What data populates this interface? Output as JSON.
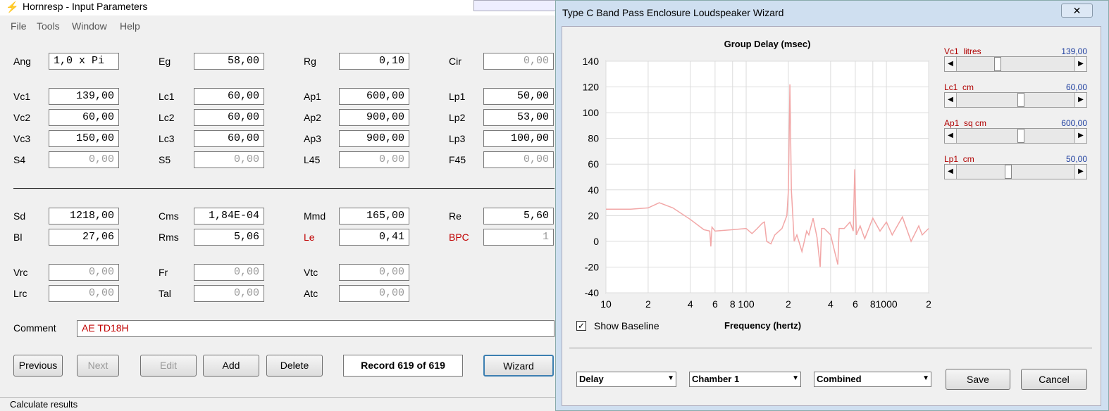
{
  "main_window": {
    "title": "Hornresp - Input Parameters",
    "menu": [
      "File",
      "Tools",
      "Window",
      "Help"
    ],
    "rows": [
      [
        {
          "label": "Ang",
          "value": "1,0 x Pi"
        },
        {
          "label": "Eg",
          "value": "58,00"
        },
        {
          "label": "Rg",
          "value": "0,10"
        },
        {
          "label": "Cir",
          "value": "0,00"
        }
      ],
      [
        {
          "label": "Vc1",
          "value": "139,00"
        },
        {
          "label": "Lc1",
          "value": "60,00"
        },
        {
          "label": "Ap1",
          "value": "600,00"
        },
        {
          "label": "Lp1",
          "value": "50,00"
        }
      ],
      [
        {
          "label": "Vc2",
          "value": "60,00"
        },
        {
          "label": "Lc2",
          "value": "60,00"
        },
        {
          "label": "Ap2",
          "value": "900,00"
        },
        {
          "label": "Lp2",
          "value": "53,00"
        }
      ],
      [
        {
          "label": "Vc3",
          "value": "150,00"
        },
        {
          "label": "Lc3",
          "value": "60,00"
        },
        {
          "label": "Ap3",
          "value": "900,00"
        },
        {
          "label": "Lp3",
          "value": "100,00"
        }
      ],
      [
        {
          "label": "S4",
          "value": "0,00"
        },
        {
          "label": "S5",
          "value": "0,00"
        },
        {
          "label": "L45",
          "value": "0,00"
        },
        {
          "label": "F45",
          "value": "0,00"
        }
      ],
      [
        {
          "label": "Sd",
          "value": "1218,00"
        },
        {
          "label": "Cms",
          "value": "1,84E-04"
        },
        {
          "label": "Mmd",
          "value": "165,00"
        },
        {
          "label": "Re",
          "value": "5,60"
        }
      ],
      [
        {
          "label": "Bl",
          "value": "27,06"
        },
        {
          "label": "Rms",
          "value": "5,06"
        },
        {
          "label": "Le",
          "value": "0,41"
        },
        {
          "label": "BPC",
          "value": "1"
        }
      ],
      [
        {
          "label": "Vrc",
          "value": "0,00"
        },
        {
          "label": "Fr",
          "value": "0,00"
        },
        {
          "label": "Vtc",
          "value": "0,00"
        }
      ],
      [
        {
          "label": "Lrc",
          "value": "0,00"
        },
        {
          "label": "Tal",
          "value": "0,00"
        },
        {
          "label": "Atc",
          "value": "0,00"
        }
      ]
    ],
    "comment": {
      "label": "Comment",
      "value": "AE TD18H"
    },
    "buttons": [
      "Previous",
      "Next",
      "Edit",
      "Add",
      "Delete"
    ],
    "record": "Record 619 of 619",
    "wizard_button": "Wizard",
    "status": "Calculate results"
  },
  "wizard": {
    "title": "Type C Band Pass Enclosure Loudspeaker Wizard",
    "sliders": [
      {
        "label": "Vc1  litres",
        "value": "139,00"
      },
      {
        "label": "Lc1  cm",
        "value": "60,00"
      },
      {
        "label": "Ap1  sq cm",
        "value": "600,00"
      },
      {
        "label": "Lp1  cm",
        "value": "50,00"
      }
    ],
    "checkbox": "Show Baseline",
    "dropdowns": [
      "Delay",
      "Chamber 1",
      "Combined"
    ],
    "buttons": [
      "Save",
      "Cancel"
    ]
  },
  "chart_data": {
    "type": "line",
    "title": "Group Delay (msec)",
    "x_label": "Frequency (hertz)",
    "x_scale": "log",
    "grid": true,
    "xlim": [
      10,
      2000
    ],
    "xticks": [
      10,
      {
        "value": 20,
        "label": "2"
      },
      {
        "value": 40,
        "label": "4"
      },
      {
        "value": 60,
        "label": "6"
      },
      {
        "value": 80,
        "label": "8"
      },
      100,
      {
        "value": 200,
        "label": "2"
      },
      {
        "value": 400,
        "label": "4"
      },
      {
        "value": 600,
        "label": "6"
      },
      {
        "value": 800,
        "label": "8"
      },
      1000,
      {
        "value": 2000,
        "label": "2"
      }
    ],
    "ylim": [
      -40,
      140
    ],
    "yticks": [
      -40,
      -20,
      0,
      20,
      40,
      60,
      80,
      100,
      120,
      140
    ],
    "series": [
      {
        "color": "#f2a7a7",
        "x": [
          10,
          15,
          20,
          24,
          30,
          40,
          50,
          55,
          56,
          57,
          60,
          80,
          100,
          110,
          120,
          130,
          135,
          140,
          150,
          160,
          180,
          195,
          200,
          205,
          210,
          220,
          230,
          250,
          270,
          280,
          300,
          320,
          337,
          345,
          360,
          400,
          450,
          460,
          500,
          550,
          580,
          594,
          610,
          650,
          700,
          800,
          900,
          1000,
          1100,
          1300,
          1500,
          1700,
          1800,
          2000
        ],
        "values": [
          25,
          25,
          26,
          30,
          26,
          17,
          9,
          8,
          -4,
          11,
          8,
          9,
          10,
          6,
          10,
          14,
          15,
          0,
          -2,
          5,
          10,
          20,
          40,
          122,
          40,
          0,
          5,
          -8,
          8,
          5,
          18,
          3,
          -20,
          10,
          10,
          5,
          -18,
          10,
          10,
          15,
          8,
          56,
          5,
          12,
          2,
          18,
          8,
          15,
          5,
          19,
          0,
          12,
          5,
          10
        ]
      }
    ]
  }
}
